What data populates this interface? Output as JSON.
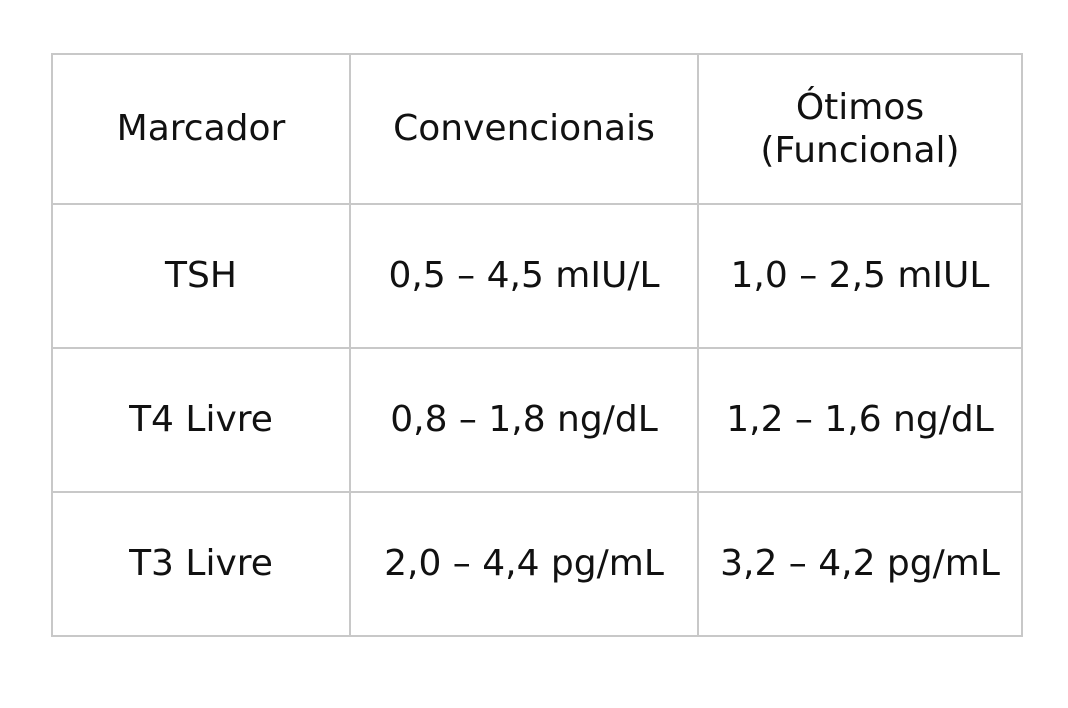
{
  "table": {
    "header": [
      "Marcador",
      "Convencionais",
      "Ótimos\n(Funcional)"
    ],
    "rows": [
      [
        "TSH",
        "0,5 – 4,5 mIU/L",
        "1,0 – 2,5 mIUL"
      ],
      [
        "T4 Livre",
        "0,8 – 1,8 ng/dL",
        "1,2 – 1,6 ng/dL"
      ],
      [
        "T3 Livre",
        "2,0 – 4,4 pg/mL",
        "3,2 – 4,2 pg/mL"
      ]
    ]
  }
}
